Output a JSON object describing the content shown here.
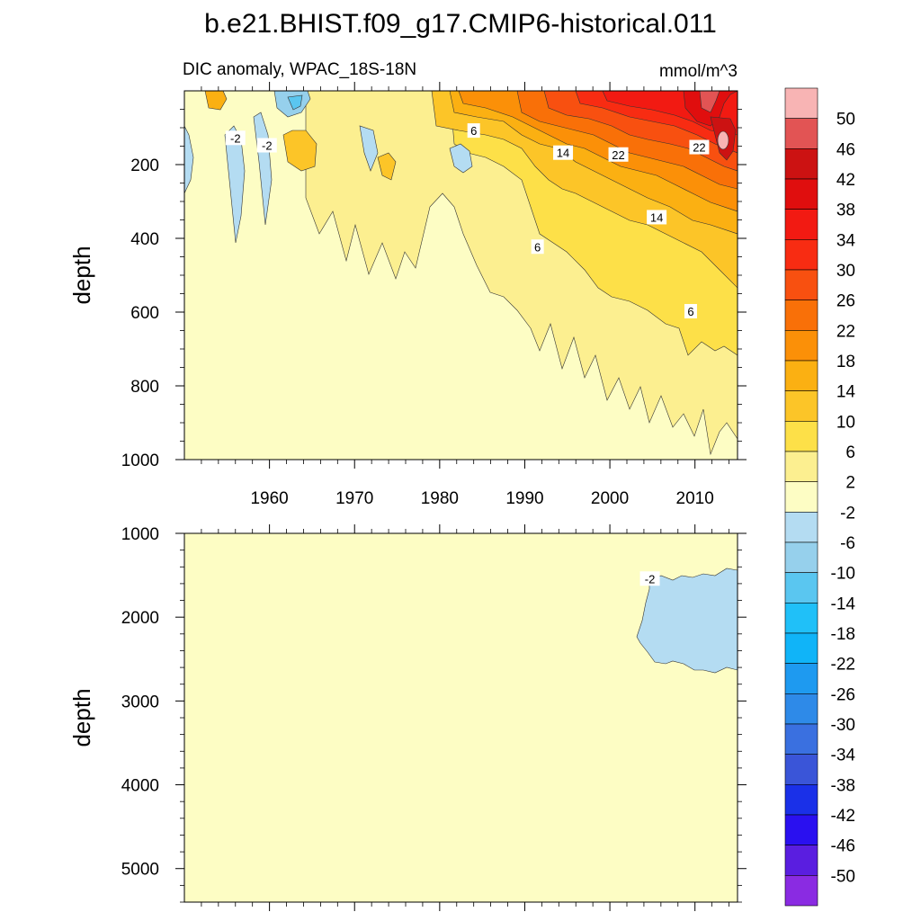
{
  "figure": {
    "title": "b.e21.BHIST.f09_g17.CMIP6-historical.011",
    "subtitle": "DIC anomaly, WPAC_18S-18N",
    "units": "mmol/m^3"
  },
  "colors": {
    "neg": [
      "#8a2be2",
      "#5a1ee0",
      "#2a10f0",
      "#1a30e8",
      "#3a55d8",
      "#3a70e0",
      "#2e8ae8",
      "#1e9af0",
      "#10b4f8",
      "#20c0f8",
      "#5ac6f0",
      "#96d0ec",
      "#b4dcf2"
    ],
    "pos": [
      "#fdfdc4",
      "#fcef90",
      "#fde048",
      "#fcc528",
      "#fbb012",
      "#fb9008",
      "#f97008",
      "#f85010",
      "#f82c12",
      "#f21a12",
      "#e00e0e",
      "#cc1212",
      "#e25454",
      "#f8b4b4"
    ]
  },
  "chart_data": [
    {
      "type": "contour",
      "name": "upper",
      "xlabel": "",
      "ylabel": "depth",
      "xlim": [
        1950,
        2015
      ],
      "ylim": [
        1000,
        0
      ],
      "x_ticks": [
        1960,
        1970,
        1980,
        1990,
        2000,
        2010
      ],
      "x_tick_labels": [
        "1960",
        "1970",
        "1980",
        "1990",
        "2000",
        "2010"
      ],
      "y_ticks": [
        200,
        400,
        600,
        800,
        1000
      ],
      "y_tick_labels": [
        "200",
        "400",
        "600",
        "800",
        "1000"
      ],
      "contour_labels": [
        {
          "text": "-2",
          "x": 1956,
          "y": 130
        },
        {
          "text": "-2",
          "x": 1959.7,
          "y": 150
        },
        {
          "text": "6",
          "x": 1984,
          "y": 110
        },
        {
          "text": "14",
          "x": 1994.5,
          "y": 170
        },
        {
          "text": "22",
          "x": 2001,
          "y": 175
        },
        {
          "text": "22",
          "x": 2010.5,
          "y": 155
        },
        {
          "text": "14",
          "x": 2005.5,
          "y": 345
        },
        {
          "text": "6",
          "x": 1991.5,
          "y": 425
        },
        {
          "text": "6",
          "x": 2009.5,
          "y": 600
        }
      ]
    },
    {
      "type": "contour",
      "name": "lower",
      "xlabel": "",
      "ylabel": "depth",
      "xlim": [
        1950,
        2015
      ],
      "ylim": [
        5400,
        1000
      ],
      "y_ticks": [
        1000,
        2000,
        3000,
        4000,
        5000
      ],
      "y_tick_labels": [
        "1000",
        "2000",
        "3000",
        "4000",
        "5000"
      ],
      "contour_labels": [
        {
          "text": "-2",
          "x": 2004.7,
          "y": 1550
        }
      ]
    },
    {
      "type": "colorbar",
      "levels": [
        "-50",
        "-46",
        "-42",
        "-38",
        "-34",
        "-30",
        "-26",
        "-22",
        "-18",
        "-14",
        "-10",
        "-6",
        "-2",
        "2",
        "6",
        "10",
        "14",
        "18",
        "22",
        "26",
        "30",
        "34",
        "38",
        "42",
        "46",
        "50"
      ]
    }
  ]
}
